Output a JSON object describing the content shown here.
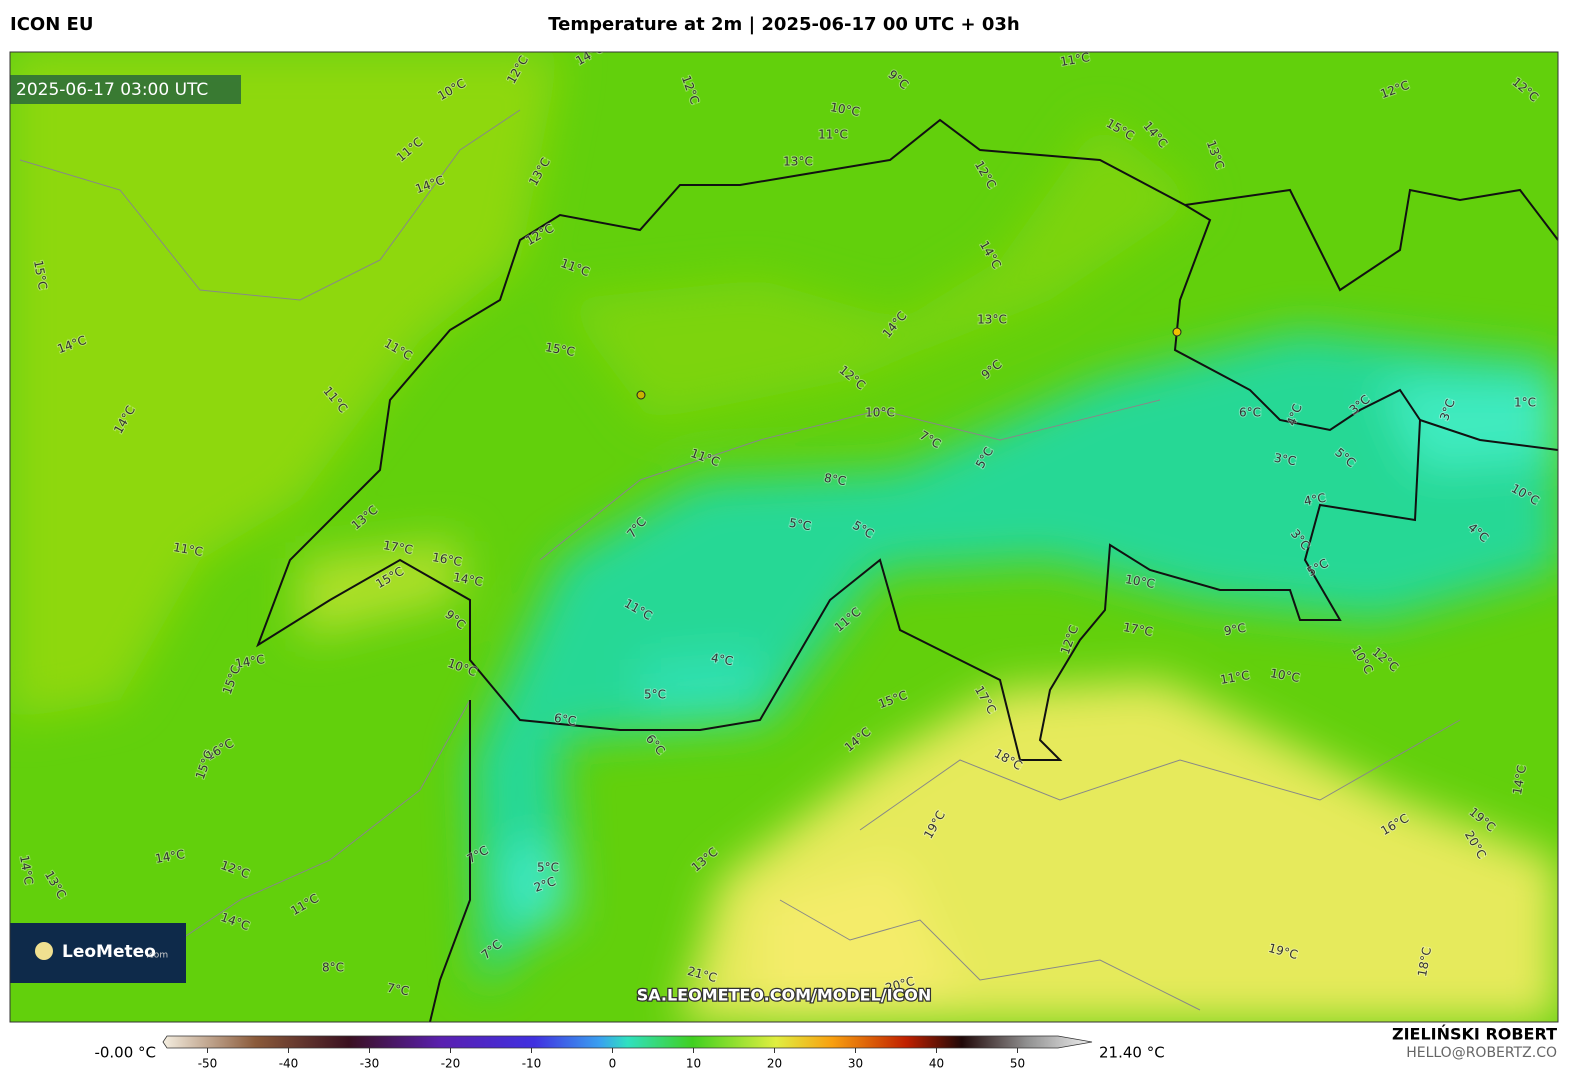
{
  "header": {
    "model": "ICON EU",
    "title": "Temperature at 2m | 2025-06-17 00 UTC + 03h"
  },
  "map": {
    "valid_time": "2025-06-17 03:00 UTC",
    "watermark": "SA.LEOMETEO.COM/MODEL/ICON",
    "logo": {
      "brand": "LeoMeteo",
      "suffix": ".com"
    },
    "contour_labels": [
      "10°C",
      "11°C",
      "14°C",
      "15°C",
      "14°C",
      "11°C",
      "11°C",
      "14°C",
      "12°C",
      "11°C",
      "15°C",
      "11°C",
      "13°C",
      "11°C",
      "17°C",
      "16°C",
      "14°C",
      "15°C",
      "7°C",
      "11°C",
      "9°C",
      "10°C",
      "14°C",
      "4°C",
      "5°C",
      "6°C",
      "6°C",
      "16°C",
      "7°C",
      "5°C",
      "2°C",
      "13°C",
      "7°C",
      "14°C",
      "12°C",
      "14°C",
      "11°C",
      "8°C",
      "7°C",
      "21°C",
      "20°C",
      "19°C",
      "18°C",
      "19°C",
      "18°C",
      "14°C",
      "15°C",
      "17°C",
      "11°C",
      "12°C",
      "17°C",
      "10°C",
      "9°C",
      "11°C",
      "10°C",
      "10°C",
      "12°C",
      "16°C",
      "19°C",
      "20°C",
      "14°C",
      "10°C",
      "4°C",
      "1°C",
      "3°C",
      "3°C",
      "5°C",
      "3°C",
      "4°C",
      "3°C",
      "5°C",
      "6°C",
      "4°C",
      "9°C",
      "5°C",
      "7°C",
      "10°C",
      "12°C",
      "8°C",
      "5°C",
      "5°C",
      "14°C",
      "13°C",
      "14°C",
      "13°C",
      "11°C",
      "10°C",
      "9°C",
      "11°C",
      "15°C",
      "14°C",
      "13°C",
      "12°C",
      "12°C",
      "12°C",
      "12°C",
      "12°C",
      "14°C",
      "13°C",
      "14°C",
      "13°C",
      "15°C",
      "15°C"
    ]
  },
  "colorbar": {
    "min_label": "-0.00 °C",
    "max_label": "21.40 °C",
    "lim": [
      -55,
      55
    ],
    "ticks": [
      -50,
      -40,
      -30,
      -20,
      -10,
      0,
      10,
      20,
      30,
      40,
      50
    ]
  },
  "footer": {
    "author": "ZIELIŃSKI ROBERT",
    "contact": "HELLO@ROBERTZ.CO"
  }
}
